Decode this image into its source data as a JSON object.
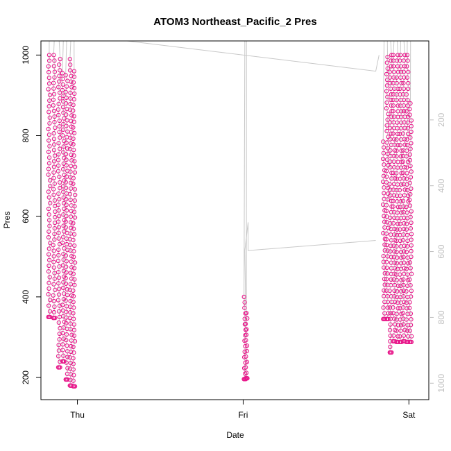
{
  "chart_data": {
    "type": "scatter",
    "title": "ATOM3 Northeast_Pacific_2 Pres",
    "xlabel": "Date",
    "ylabel": "Pres",
    "x_ticks": [
      "Thu",
      "Fri",
      "Sat"
    ],
    "x_range_days": [
      -0.22,
      2.12
    ],
    "ylim": [
      145,
      1035
    ],
    "y_ticks": [
      200,
      400,
      600,
      800,
      1000
    ],
    "y2_ticks": [
      200,
      400,
      600,
      800,
      1000
    ],
    "y2lim": [
      -40,
      1050
    ],
    "grid": false,
    "legend": "none",
    "colors": {
      "points": "#e8198b",
      "profile_lines": "#c8c8c8",
      "axis": "#000000",
      "secondary_axis": "#bdbdbd"
    },
    "series": [
      {
        "marker": "circle-open",
        "groups": [
          {
            "x": -0.17,
            "y_top": 1000,
            "y_bottom": 350
          },
          {
            "x": -0.14,
            "y_top": 1000,
            "y_bottom": 348
          },
          {
            "x": -0.11,
            "y_top": 990,
            "y_bottom": 225
          },
          {
            "x": -0.085,
            "y_top": 955,
            "y_bottom": 240
          },
          {
            "x": -0.065,
            "y_top": 950,
            "y_bottom": 195
          },
          {
            "x": -0.04,
            "y_top": 990,
            "y_bottom": 180
          },
          {
            "x": -0.02,
            "y_top": 960,
            "y_bottom": 178
          },
          {
            "x": 1.01,
            "y_top": 400,
            "y_bottom": 196
          },
          {
            "x": 1.02,
            "y_top": 360,
            "y_bottom": 198
          },
          {
            "x": 1.85,
            "y_top": 785,
            "y_bottom": 345
          },
          {
            "x": 1.87,
            "y_top": 995,
            "y_bottom": 345
          },
          {
            "x": 1.89,
            "y_top": 1000,
            "y_bottom": 262
          },
          {
            "x": 1.91,
            "y_top": 1000,
            "y_bottom": 290
          },
          {
            "x": 1.93,
            "y_top": 1000,
            "y_bottom": 288
          },
          {
            "x": 1.95,
            "y_top": 1000,
            "y_bottom": 288
          },
          {
            "x": 1.97,
            "y_top": 1000,
            "y_bottom": 290
          },
          {
            "x": 1.99,
            "y_top": 1000,
            "y_bottom": 288
          },
          {
            "x": 2.01,
            "y_top": 880,
            "y_bottom": 288
          }
        ]
      }
    ]
  }
}
